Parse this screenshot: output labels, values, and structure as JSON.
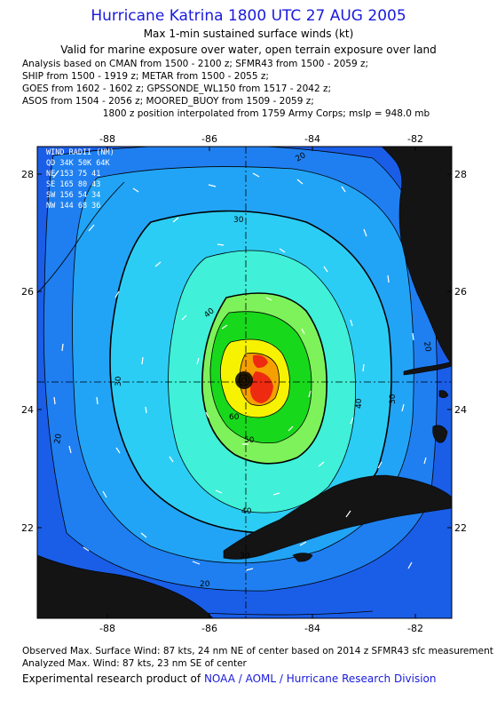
{
  "header": {
    "title": "Hurricane Katrina 1800 UTC 27 AUG 2005",
    "subtitle": "Max 1-min sustained surface winds (kt)",
    "validity": "Valid for marine exposure over water, open terrain exposure over land",
    "analysis_lines": [
      "Analysis based on  CMAN from 1500 - 2100 z;  SFMR43 from 1500 - 2059 z;",
      "SHIP from 1500 - 1919 z;  METAR from 1500 - 2055 z;",
      "GOES from 1602 - 1602 z;  GPSSONDE_WL150 from 1517 - 2042 z;",
      "ASOS from 1504 - 2056 z;  MOORED_BUOY from 1509 - 2059 z;"
    ],
    "position_note": "1800 z position interpolated from 1759 Army Corps; mslp = 948.0 mb"
  },
  "map": {
    "lon_ticks": [
      "-88",
      "-86",
      "-84",
      "-82"
    ],
    "lat_ticks": [
      "28",
      "26",
      "24",
      "22"
    ],
    "contour_labels": [
      "20",
      "20",
      "20",
      "20",
      "30",
      "30",
      "30",
      "30",
      "40",
      "40",
      "40",
      "50",
      "60"
    ],
    "wind_radii": {
      "title": "WIND RADII (NM)",
      "header": "QD  34K  50K  64K",
      "rows": [
        "NE  153   75   41",
        "SE  165   80   43",
        "SW  156   54   34",
        "NW  144   68   36"
      ]
    },
    "colors": {
      "ocean_low": "#1a5ee8",
      "ring_15": "#1f7ff0",
      "ring_20": "#22a4f6",
      "ring_30": "#2ccdf4",
      "ring_40": "#40f0d8",
      "ring_50": "#7ef25a",
      "ring_60": "#18d81c",
      "ring_70": "#f6f200",
      "ring_80": "#f6a000",
      "ring_85": "#ee2a10",
      "land": "#1a1a1a"
    }
  },
  "footer": {
    "observed": "Observed Max. Surface Wind: 87 kts, 24 nm NE of center based on 2014 z SFMR43 sfc measurement",
    "analyzed": "Analyzed Max. Wind: 87 kts, 23 nm SE of center",
    "credit_prefix": "Experimental research product of",
    "credit_org": "NOAA / AOML / Hurricane Research Division"
  }
}
